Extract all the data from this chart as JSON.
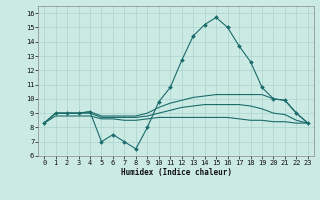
{
  "title": "",
  "xlabel": "Humidex (Indice chaleur)",
  "ylabel": "",
  "bg_color": "#cceae4",
  "grid_color": "#aad4cc",
  "line_color": "#1a6b6b",
  "xlim": [
    -0.5,
    23.5
  ],
  "ylim": [
    6,
    16.5
  ],
  "yticks": [
    6,
    7,
    8,
    9,
    10,
    11,
    12,
    13,
    14,
    15,
    16
  ],
  "xticks": [
    0,
    1,
    2,
    3,
    4,
    5,
    6,
    7,
    8,
    9,
    10,
    11,
    12,
    13,
    14,
    15,
    16,
    17,
    18,
    19,
    20,
    21,
    22,
    23
  ],
  "main_line": [
    8.3,
    9.0,
    9.0,
    9.0,
    9.1,
    7.0,
    7.5,
    7.0,
    6.5,
    8.0,
    9.8,
    10.8,
    12.7,
    14.4,
    15.2,
    15.7,
    15.0,
    13.7,
    12.6,
    10.8,
    10.0,
    9.9,
    9.0,
    8.3
  ],
  "line2": [
    8.3,
    9.0,
    9.0,
    9.0,
    9.1,
    8.8,
    8.8,
    8.8,
    8.8,
    9.0,
    9.4,
    9.7,
    9.9,
    10.1,
    10.2,
    10.3,
    10.3,
    10.3,
    10.3,
    10.3,
    10.0,
    9.9,
    9.0,
    8.3
  ],
  "line3": [
    8.3,
    9.0,
    9.0,
    9.0,
    9.0,
    8.7,
    8.7,
    8.7,
    8.7,
    8.8,
    9.0,
    9.2,
    9.4,
    9.5,
    9.6,
    9.6,
    9.6,
    9.6,
    9.5,
    9.3,
    9.0,
    8.9,
    8.5,
    8.3
  ],
  "line4": [
    8.3,
    8.8,
    8.8,
    8.8,
    8.8,
    8.6,
    8.6,
    8.5,
    8.5,
    8.6,
    8.7,
    8.7,
    8.7,
    8.7,
    8.7,
    8.7,
    8.7,
    8.6,
    8.5,
    8.5,
    8.4,
    8.4,
    8.3,
    8.3
  ],
  "tick_fontsize": 5.0,
  "xlabel_fontsize": 5.5
}
